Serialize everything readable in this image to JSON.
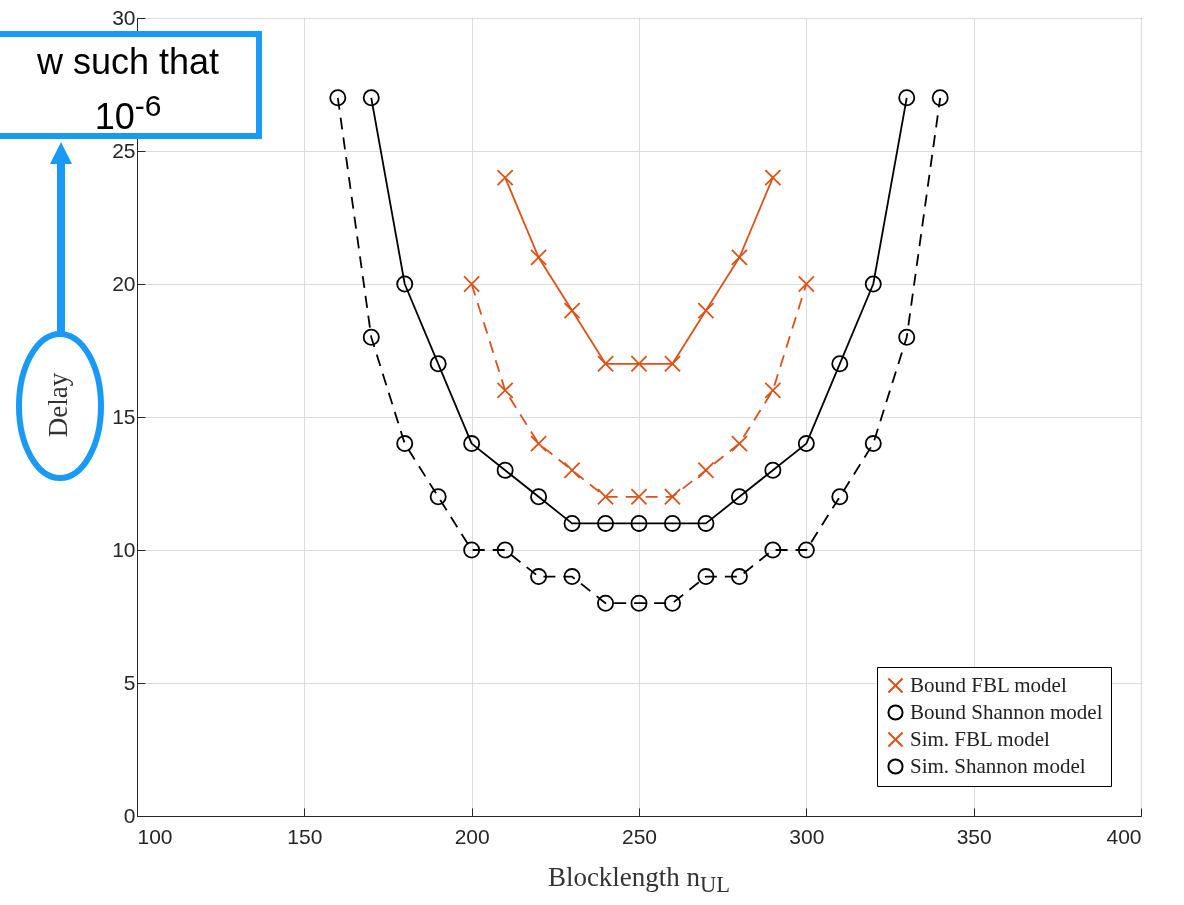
{
  "chart_data": {
    "type": "line",
    "xlabel": "Blocklength n$_{UL}$",
    "ylabel": "Delay",
    "annotations": [
      "w such that",
      "10$^{-6}$"
    ],
    "xlim": [
      100,
      400
    ],
    "xticks": [
      100,
      150,
      200,
      250,
      300,
      350,
      400
    ],
    "ylim": [
      0,
      30
    ],
    "yticks": [
      0,
      5,
      10,
      15,
      20,
      25,
      30
    ],
    "grid": true,
    "legend": "bottom right",
    "series": [
      {
        "name": "Bound FBL model",
        "color": "#d95319",
        "marker": "cross",
        "line_style": "solid",
        "x": [
          210,
          220,
          230,
          240,
          250,
          260,
          270,
          280,
          290
        ],
        "values": [
          24,
          21,
          19,
          17,
          17,
          17,
          19,
          21,
          24
        ]
      },
      {
        "name": "Bound Shannon model",
        "color": "#000000",
        "marker": "circle",
        "line_style": "solid",
        "x": [
          170,
          180,
          190,
          200,
          210,
          220,
          230,
          240,
          250,
          260,
          270,
          280,
          290,
          300,
          310,
          320,
          330
        ],
        "values": [
          27,
          20,
          17,
          14,
          13,
          12,
          11,
          11,
          11,
          11,
          11,
          12,
          13,
          14,
          17,
          20,
          27
        ]
      },
      {
        "name": "Sim. FBL model",
        "color": "#d95319",
        "marker": "cross",
        "line_style": "dashed",
        "x": [
          200,
          210,
          220,
          230,
          240,
          250,
          260,
          270,
          280,
          290,
          300
        ],
        "values": [
          20,
          16,
          14,
          13,
          12,
          12,
          12,
          13,
          14,
          16,
          20
        ]
      },
      {
        "name": "Sim. Shannon model",
        "color": "#000000",
        "marker": "circle",
        "line_style": "dashed",
        "x": [
          160,
          170,
          180,
          190,
          200,
          210,
          220,
          230,
          240,
          250,
          260,
          270,
          280,
          290,
          300,
          310,
          320,
          330,
          340
        ],
        "values": [
          27,
          18,
          14,
          12,
          10,
          10,
          9,
          9,
          8,
          8,
          8,
          9,
          9,
          10,
          10,
          12,
          14,
          18,
          27
        ]
      }
    ]
  }
}
